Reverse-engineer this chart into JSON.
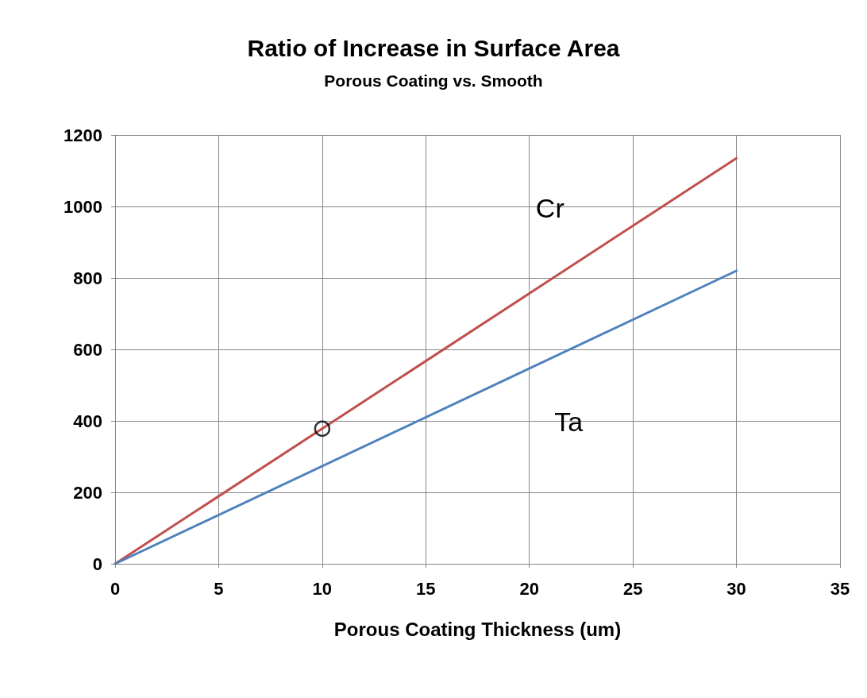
{
  "chart_data": {
    "type": "line",
    "title": "Ratio of Increase in Surface Area",
    "subtitle": "Porous Coating vs. Smooth",
    "xlabel": "Porous Coating Thickness (um)",
    "x": [
      0,
      30
    ],
    "series": [
      {
        "name": "Cr",
        "color": "#c0504d",
        "values": [
          0,
          1135
        ]
      },
      {
        "name": "Ta",
        "color": "#4f81bd",
        "values": [
          0,
          820
        ]
      },
      {
        "type": "scatter",
        "color": "#000000",
        "x": [
          10
        ],
        "values": [
          378
        ],
        "marker": "circle"
      }
    ],
    "xlim": [
      0,
      35
    ],
    "xticks": [
      0,
      5,
      10,
      15,
      20,
      25,
      30,
      35
    ],
    "ylim": [
      0,
      1200
    ],
    "yticks": [
      0,
      200,
      400,
      600,
      800,
      1000,
      1200
    ],
    "grid": true,
    "legend": false,
    "marker": "none",
    "line_style": "solid"
  }
}
